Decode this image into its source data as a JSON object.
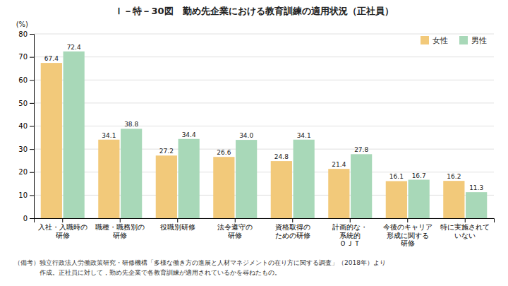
{
  "chart_data": {
    "type": "bar",
    "title": "Ｉ－特－30図　勤め先企業における教育訓練の適用状況（正社員）",
    "categories": [
      "入社・入職時の\n研修",
      "職種・職務別の\n研修",
      "役職別研修",
      "法令遵守の\n研修",
      "資格取得の\nための研修",
      "計画的な・\n系統的\nＯＪＴ",
      "今後のキャリア\n形成に関する\n研修",
      "特に実施されて\nいない"
    ],
    "series": [
      {
        "name": "女性",
        "color": "#F2C97A",
        "values": [
          67.4,
          34.1,
          27.2,
          26.6,
          24.8,
          21.4,
          16.1,
          16.2
        ]
      },
      {
        "name": "男性",
        "color": "#A8D8B8",
        "values": [
          72.4,
          38.8,
          34.4,
          34.0,
          34.1,
          27.8,
          16.7,
          11.3
        ],
        "value_labels": [
          "72.4",
          "38.8",
          "34.4",
          "34.0",
          "34.1",
          "27.8",
          "16.7",
          "11.3"
        ]
      }
    ],
    "y_label": "(%)",
    "ylim": [
      0,
      80
    ],
    "yticks": [
      0,
      10,
      20,
      30,
      40,
      50,
      60,
      70,
      80
    ],
    "grid": true,
    "legend": "upper right",
    "data_labels": true,
    "annotations": [
      "（備考）独立行政法人労働政策研究・研修機構「多様な働き方の進展と人材マネジメントの在り方に関する調査」（2018年）より",
      "　　　　作成。正社員に対して，勤め先企業で各教育訓練が適用されているかを尋ねたもの。"
    ]
  }
}
